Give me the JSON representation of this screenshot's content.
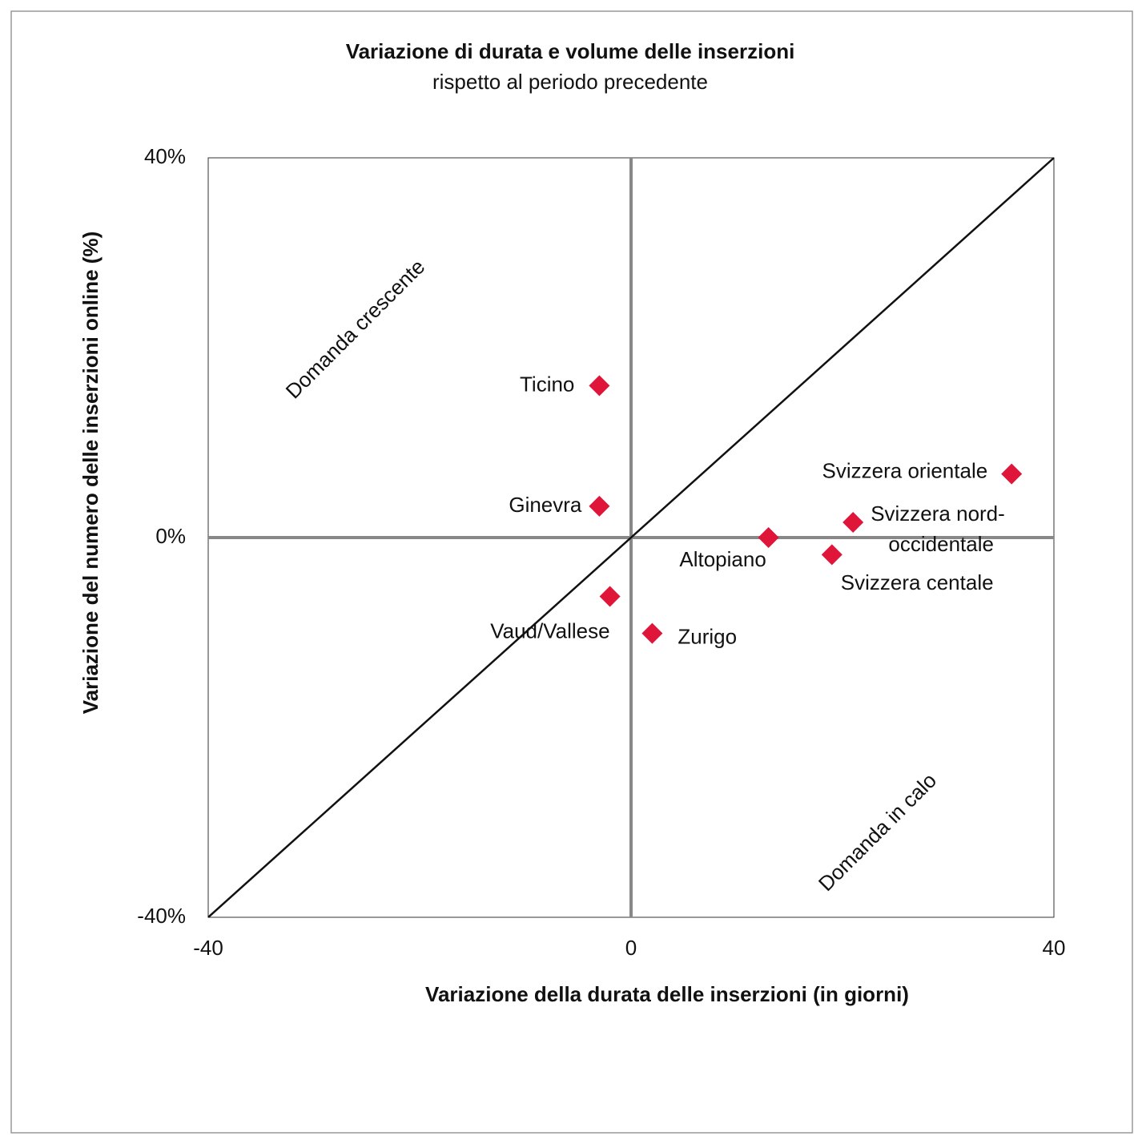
{
  "chart_data": {
    "type": "scatter",
    "title": "Variazione di durata e volume delle inserzioni",
    "subtitle": "rispetto al periodo precedente",
    "x_label": "Variazione della durata delle inserzioni (in giorni)",
    "y_label": "Variazione del numero delle inserzioni online (%)",
    "annotations": [
      "Domanda crescente",
      "Domanda in calo"
    ],
    "point_labels": [
      "Ticino",
      "Ginevra",
      "Svizzera orientale",
      "Svizzera nord-occidentale",
      "Altopiano",
      "Svizzera centale",
      "Vaud/Vallese",
      "Zurigo"
    ],
    "x": [
      -3,
      -3,
      36,
      21,
      13,
      19,
      -2,
      2
    ],
    "values": [
      16,
      3.3,
      6.7,
      1.6,
      0,
      -1.8,
      -6.2,
      -10.1
    ],
    "color": "#e0153a",
    "xlim": [
      -40,
      40
    ],
    "xticks": [
      -40,
      0,
      40
    ],
    "ylim": [
      -40,
      40
    ],
    "yticks": [
      {
        "value": -40,
        "label": "-40%"
      },
      {
        "value": 0,
        "label": "0%"
      },
      {
        "value": 40,
        "label": "40%"
      }
    ]
  }
}
